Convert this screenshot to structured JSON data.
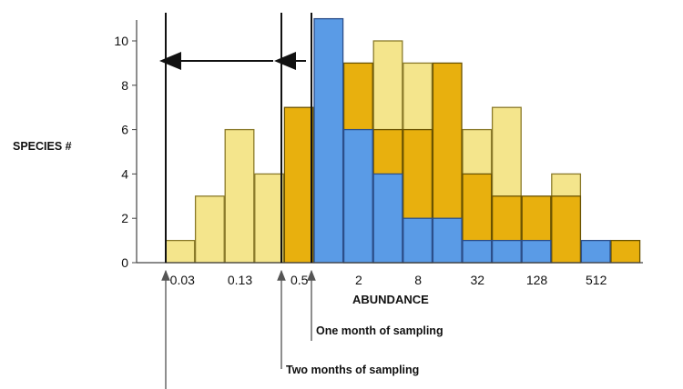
{
  "chart_data": {
    "type": "bar",
    "ylabel": "SPECIES #",
    "xlabel": "ABUNDANCE",
    "ylim": [
      0,
      10
    ],
    "yticks": [
      0,
      2,
      4,
      6,
      8,
      10
    ],
    "xtick_labels": [
      "0.03",
      "0.13",
      "0.5",
      "2",
      "8",
      "32",
      "128",
      "512"
    ],
    "bins": [
      "1/32",
      "1/16",
      "1/8",
      "1/4",
      "1/2",
      "1",
      "2",
      "4",
      "8",
      "16",
      "32",
      "64",
      "128",
      "256",
      "512",
      "1024"
    ],
    "series": [
      {
        "key": "one_month",
        "values": [
          0,
          0,
          0,
          0,
          0,
          11,
          6,
          4,
          2,
          2,
          1,
          1,
          1,
          0,
          1,
          0
        ],
        "color": "#5a9be6"
      },
      {
        "key": "two_months",
        "values": [
          0,
          0,
          0,
          0,
          7,
          0,
          9,
          6,
          6,
          9,
          4,
          3,
          3,
          3,
          0,
          1
        ],
        "color": "#e8b00e"
      },
      {
        "key": "three_months",
        "values": [
          1,
          3,
          6,
          4,
          0,
          0,
          0,
          10,
          9,
          0,
          6,
          7,
          0,
          4,
          0,
          0
        ],
        "color": "#f4e58c"
      }
    ],
    "annotations": [
      "One month of sampling",
      "Two months of sampling"
    ]
  }
}
